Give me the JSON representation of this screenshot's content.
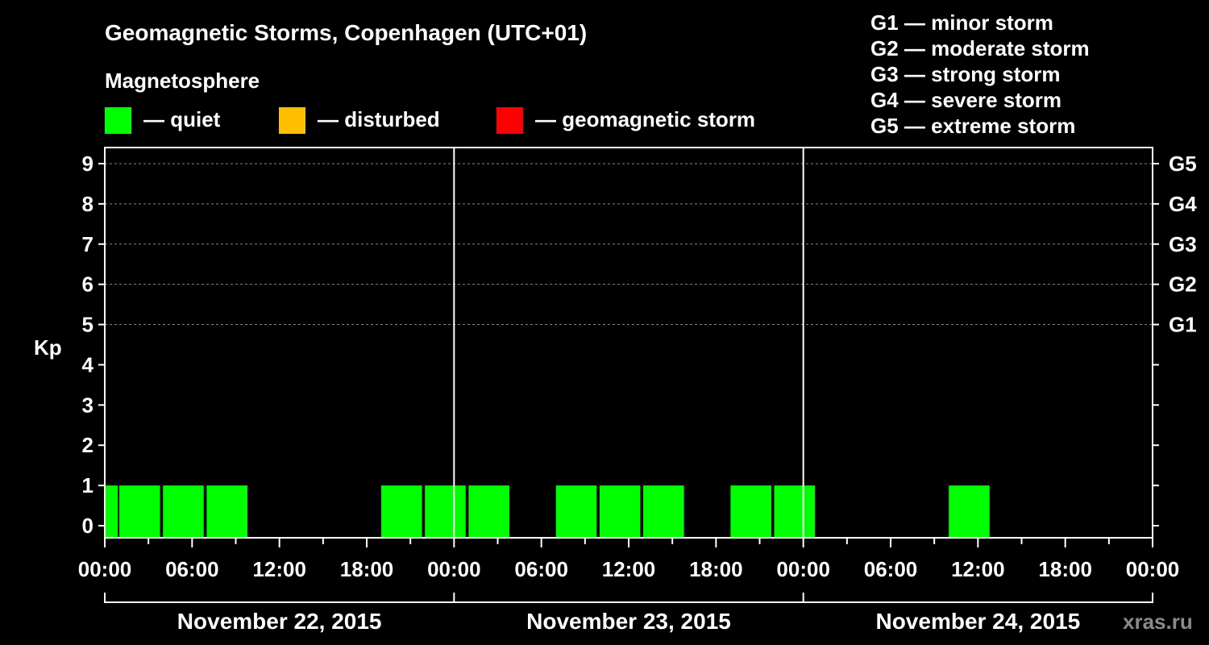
{
  "title": "Geomagnetic Storms, Copenhagen (UTC+01)",
  "legend": {
    "heading": "Magnetosphere",
    "items": [
      {
        "label": "— quiet",
        "color": "#00ff00"
      },
      {
        "label": "— disturbed",
        "color": "#ffbf00"
      },
      {
        "label": "— geomagnetic storm",
        "color": "#ff0000"
      }
    ]
  },
  "storm_scale": [
    "G1 — minor storm",
    "G2 — moderate storm",
    "G3 — strong storm",
    "G4 — severe storm",
    "G5 — extreme storm"
  ],
  "watermark": "xras.ru",
  "chart_data": {
    "type": "bar",
    "ylabel": "Kp",
    "ylim": [
      -0.3,
      9.4
    ],
    "yticks": [
      0,
      1,
      2,
      3,
      4,
      5,
      6,
      7,
      8,
      9
    ],
    "grid": "dashed at Kp 5 to 9",
    "right_axis": [
      {
        "kp": 5,
        "label": "G1"
      },
      {
        "kp": 6,
        "label": "G2"
      },
      {
        "kp": 7,
        "label": "G3"
      },
      {
        "kp": 8,
        "label": "G4"
      },
      {
        "kp": 9,
        "label": "G5"
      }
    ],
    "x_range_hours": [
      0,
      72
    ],
    "xtick_labels": [
      "00:00",
      "06:00",
      "12:00",
      "18:00",
      "00:00",
      "06:00",
      "12:00",
      "18:00",
      "00:00",
      "06:00",
      "12:00",
      "18:00",
      "00:00"
    ],
    "dates": [
      "November 22, 2015",
      "November 23, 2015",
      "November 24, 2015"
    ],
    "bar_color": "#00ff00",
    "bars": [
      {
        "start_hour": 0.0,
        "end_hour": 0.9,
        "kp": 1
      },
      {
        "start_hour": 1.0,
        "end_hour": 3.8,
        "kp": 1
      },
      {
        "start_hour": 4.0,
        "end_hour": 6.8,
        "kp": 1
      },
      {
        "start_hour": 7.0,
        "end_hour": 9.8,
        "kp": 1
      },
      {
        "start_hour": 19.0,
        "end_hour": 21.8,
        "kp": 1
      },
      {
        "start_hour": 22.0,
        "end_hour": 24.8,
        "kp": 1
      },
      {
        "start_hour": 25.0,
        "end_hour": 27.8,
        "kp": 1
      },
      {
        "start_hour": 31.0,
        "end_hour": 33.8,
        "kp": 1
      },
      {
        "start_hour": 34.0,
        "end_hour": 36.8,
        "kp": 1
      },
      {
        "start_hour": 37.0,
        "end_hour": 39.8,
        "kp": 1
      },
      {
        "start_hour": 43.0,
        "end_hour": 45.8,
        "kp": 1
      },
      {
        "start_hour": 46.0,
        "end_hour": 48.8,
        "kp": 1
      },
      {
        "start_hour": 58.0,
        "end_hour": 60.8,
        "kp": 1
      }
    ]
  }
}
